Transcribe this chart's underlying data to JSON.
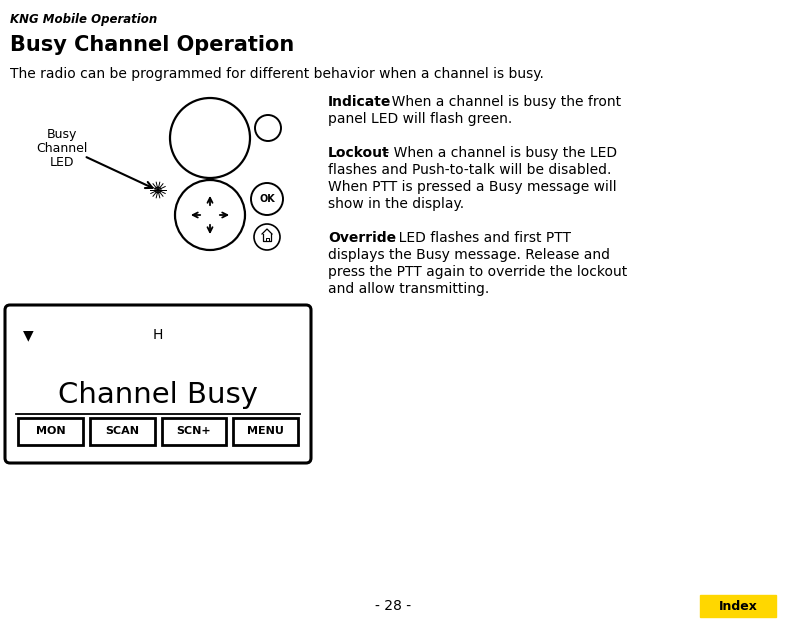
{
  "page_header": "KNG Mobile Operation",
  "title": "Busy Channel Operation",
  "subtitle": "The radio can be programmed for different behavior when a channel is busy.",
  "busy_label": [
    "Busy",
    "Channel",
    "LED"
  ],
  "indicate_bold": "Indicate",
  "indicate_lines": [
    " - When a channel is busy the front",
    "panel LED will flash green."
  ],
  "lockout_bold": "Lockout",
  "lockout_lines": [
    " - When a channel is busy the LED",
    "flashes and Push-to-talk will be disabled.",
    "When PTT is pressed a Busy message will",
    "show in the display."
  ],
  "override_bold": "Override",
  "override_lines": [
    " - LED flashes and first PTT",
    "displays the Busy message. Release and",
    "press the PTT again to override the lockout",
    "and allow transmitting."
  ],
  "display_h": "H",
  "display_main": "Channel Busy",
  "buttons": [
    "MON",
    "SCAN",
    "SCN+",
    "MENU"
  ],
  "page_number": "- 28 -",
  "index_label": "Index",
  "index_bg": "#FFD700",
  "bg_color": "#FFFFFF",
  "text_color": "#000000",
  "fig_w": 7.86,
  "fig_h": 6.22,
  "dpi": 100
}
